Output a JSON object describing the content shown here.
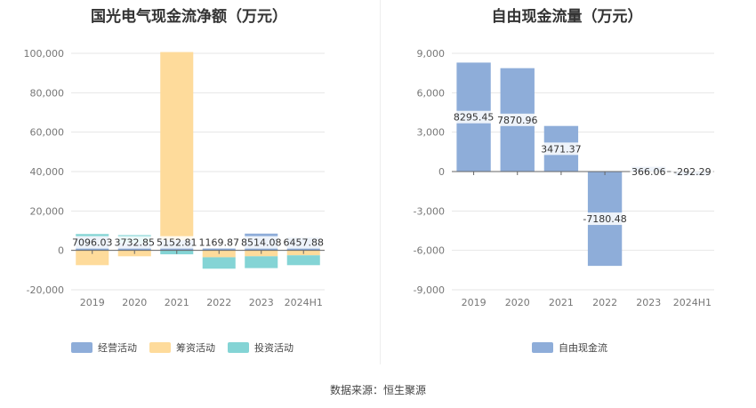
{
  "source_text": "数据来源：恒生聚源",
  "colors": {
    "operating": "#8eadd9",
    "financing": "#fedb9b",
    "investing": "#84d4d5",
    "free_cash_flow": "#8eadd9"
  },
  "chart_data": [
    {
      "type": "bar",
      "stacked": true,
      "title": "国光电气现金流净额（万元）",
      "categories": [
        "2019",
        "2020",
        "2021",
        "2022",
        "2023",
        "2024H1"
      ],
      "ylim": [
        -20000,
        100000
      ],
      "yticks": [
        100000,
        80000,
        60000,
        40000,
        20000,
        0,
        -20000
      ],
      "ytick_labels": [
        "100,000",
        "80,000",
        "60,000",
        "40,000",
        "20,000",
        "0",
        "-20,000"
      ],
      "series": [
        {
          "name": "经营活动",
          "values": [
            7096.03,
            3732.85,
            5152.81,
            1169.87,
            8514.08,
            6457.88
          ]
        },
        {
          "name": "筹资活动",
          "values": [
            -7500,
            -3000,
            95500,
            -3500,
            -3000,
            -2500
          ]
        },
        {
          "name": "投资活动",
          "values": [
            1200,
            4000,
            -2000,
            -5800,
            -6000,
            -5000
          ]
        }
      ],
      "data_labels": [
        "7096.03",
        "3732.85",
        "5152.81",
        "1169.87",
        "8514.08",
        "6457.88"
      ],
      "legend": [
        "经营活动",
        "筹资活动",
        "投资活动"
      ]
    },
    {
      "type": "bar",
      "title": "自由现金流量（万元）",
      "categories": [
        "2019",
        "2020",
        "2021",
        "2022",
        "2023",
        "2024H1"
      ],
      "ylim": [
        -9000,
        9000
      ],
      "yticks": [
        9000,
        6000,
        3000,
        0,
        -3000,
        -6000,
        -9000
      ],
      "ytick_labels": [
        "9,000",
        "6,000",
        "3,000",
        "0",
        "-3,000",
        "-6,000",
        "-9,000"
      ],
      "series": [
        {
          "name": "自由现金流",
          "values": [
            8295.45,
            7870.96,
            3471.37,
            -7180.48,
            366.06,
            -292.29
          ]
        }
      ],
      "data_labels": [
        "8295.45",
        "7870.96",
        "3471.37",
        "-7180.48",
        "366.06",
        "-292.29"
      ],
      "legend": [
        "自由现金流"
      ]
    }
  ]
}
